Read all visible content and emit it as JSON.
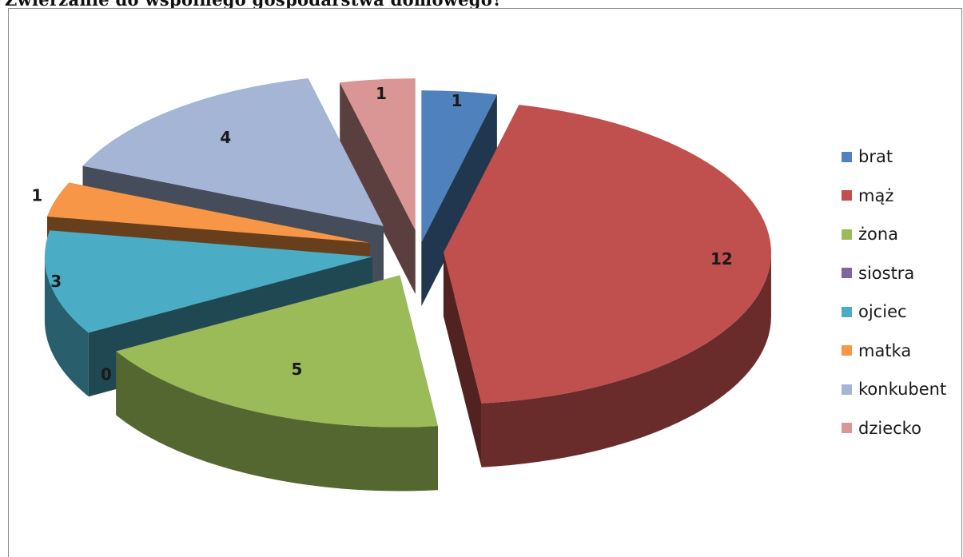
{
  "heading": {
    "text": "Zwierzanie do wspólnego gospodarstwa domowego?"
  },
  "chart_data": {
    "type": "pie",
    "title": "",
    "legend_position": "right",
    "slices": [
      {
        "name": "brat",
        "value": 1,
        "color": "#4f81bd"
      },
      {
        "name": "mąż",
        "value": 12,
        "color": "#c0504d"
      },
      {
        "name": "żona",
        "value": 5,
        "color": "#9bbb59"
      },
      {
        "name": "siostra",
        "value": 0,
        "color": "#8064a2"
      },
      {
        "name": "ojciec",
        "value": 3,
        "color": "#4bacc6"
      },
      {
        "name": "matka",
        "value": 1,
        "color": "#f79646"
      },
      {
        "name": "konkubent",
        "value": 4,
        "color": "#a5b5d6"
      },
      {
        "name": "dziecko",
        "value": 1,
        "color": "#d99694"
      }
    ],
    "value_labels": [
      "1",
      "12",
      "5",
      "0",
      "3",
      "1",
      "4",
      "1"
    ]
  }
}
